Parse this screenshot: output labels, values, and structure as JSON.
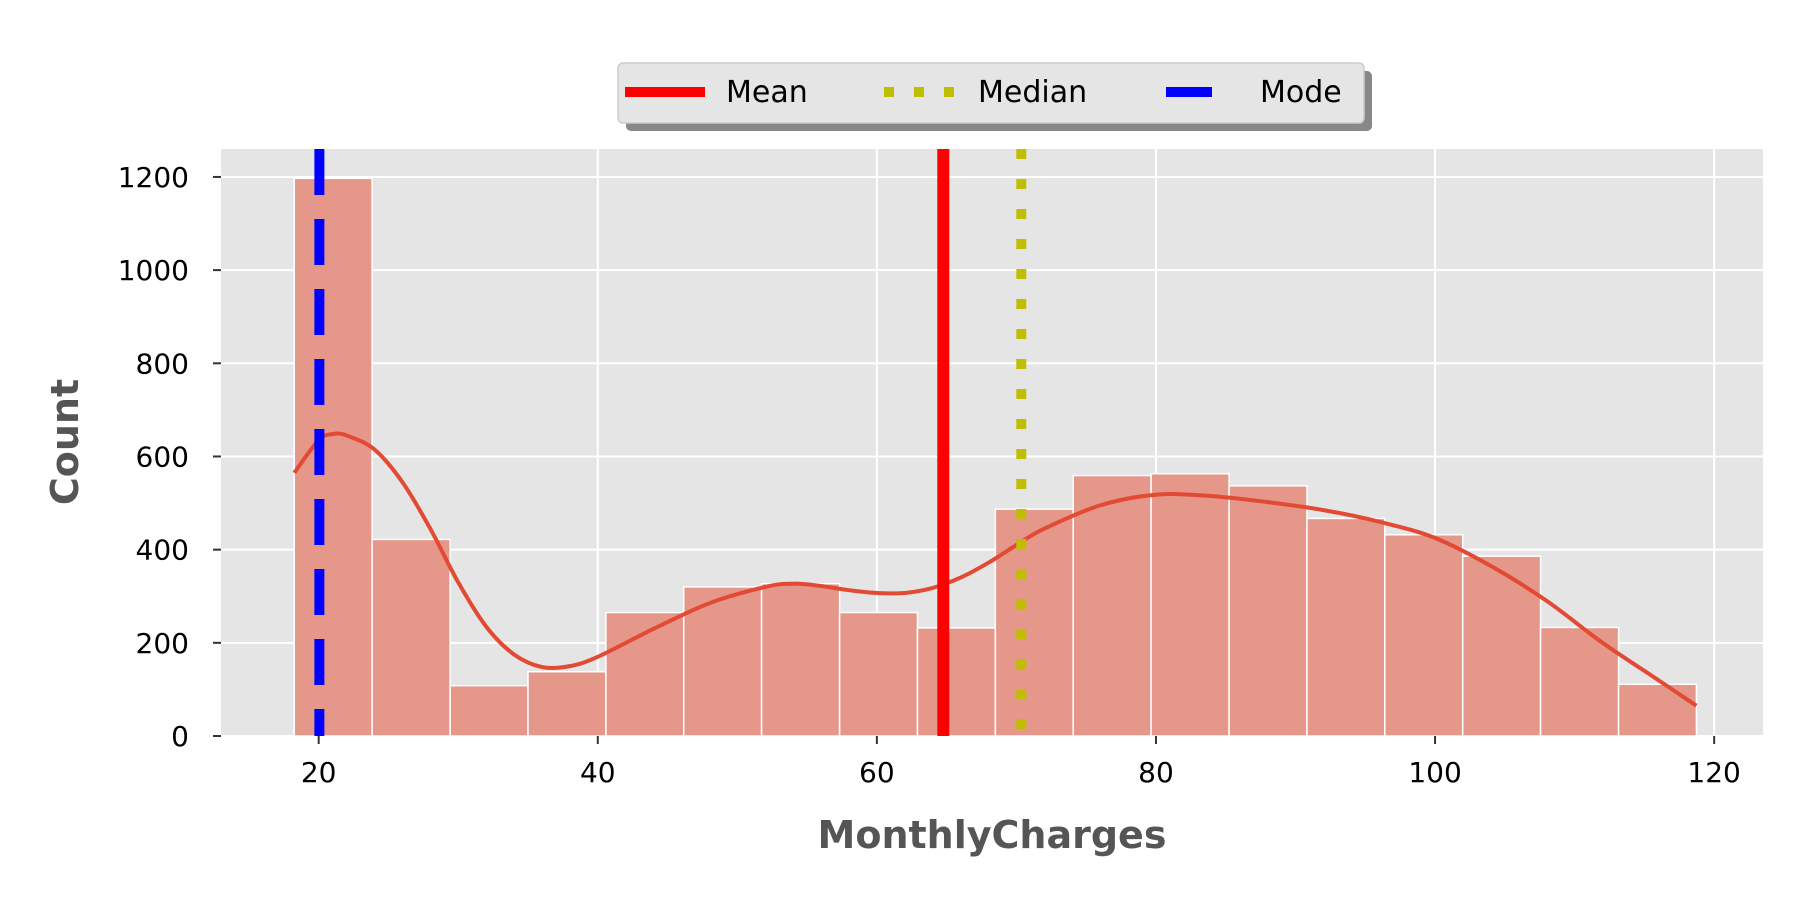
{
  "chart_data": {
    "type": "bar",
    "xlabel": "MonthlyCharges",
    "ylabel": "Count",
    "xlim": [
      13,
      123.5
    ],
    "ylim": [
      0,
      1260
    ],
    "x_ticks": [
      20,
      40,
      60,
      80,
      100,
      120
    ],
    "y_ticks": [
      0,
      200,
      400,
      600,
      800,
      1000,
      1200
    ],
    "grid": true,
    "legend_position": "top-center",
    "colors": {
      "background": "#e5e5e5",
      "bar": "#e5978a",
      "kde": "#e24a33",
      "mean": "#ff0000",
      "median": "#bfbf00",
      "mode": "#0000ff"
    },
    "bins": [
      {
        "start": 18.25,
        "end": 23.83,
        "count": 1197
      },
      {
        "start": 23.83,
        "end": 29.42,
        "count": 422
      },
      {
        "start": 29.42,
        "end": 35.0,
        "count": 108
      },
      {
        "start": 35.0,
        "end": 40.58,
        "count": 138
      },
      {
        "start": 40.58,
        "end": 46.16,
        "count": 265
      },
      {
        "start": 46.16,
        "end": 51.74,
        "count": 320
      },
      {
        "start": 51.74,
        "end": 57.33,
        "count": 327
      },
      {
        "start": 57.33,
        "end": 62.91,
        "count": 265
      },
      {
        "start": 62.91,
        "end": 68.49,
        "count": 232
      },
      {
        "start": 68.49,
        "end": 74.07,
        "count": 487
      },
      {
        "start": 74.07,
        "end": 79.65,
        "count": 559
      },
      {
        "start": 79.65,
        "end": 85.24,
        "count": 563
      },
      {
        "start": 85.24,
        "end": 90.82,
        "count": 537
      },
      {
        "start": 90.82,
        "end": 96.4,
        "count": 467
      },
      {
        "start": 96.4,
        "end": 101.98,
        "count": 432
      },
      {
        "start": 101.98,
        "end": 107.56,
        "count": 386
      },
      {
        "start": 107.56,
        "end": 113.15,
        "count": 233
      },
      {
        "start": 113.15,
        "end": 118.73,
        "count": 111
      }
    ],
    "kde": {
      "x": [
        18.25,
        20,
        21,
        22,
        24,
        26,
        28,
        30,
        32,
        34,
        36,
        38,
        40,
        44,
        48,
        52,
        54,
        56,
        58,
        60,
        62,
        64,
        66,
        68,
        70,
        72,
        76,
        80,
        84,
        88,
        92,
        96,
        100,
        104,
        108,
        112,
        116,
        118.73
      ],
      "y": [
        565,
        635,
        648,
        645,
        615,
        545,
        445,
        330,
        235,
        175,
        148,
        150,
        170,
        230,
        285,
        320,
        327,
        322,
        313,
        307,
        307,
        318,
        340,
        372,
        410,
        445,
        495,
        518,
        515,
        502,
        485,
        460,
        425,
        365,
        290,
        200,
        120,
        65
      ]
    },
    "reference_lines": [
      {
        "name": "Mean",
        "value": 64.76
      },
      {
        "name": "Median",
        "value": 70.35
      },
      {
        "name": "Mode",
        "value": 20.05
      }
    ]
  }
}
